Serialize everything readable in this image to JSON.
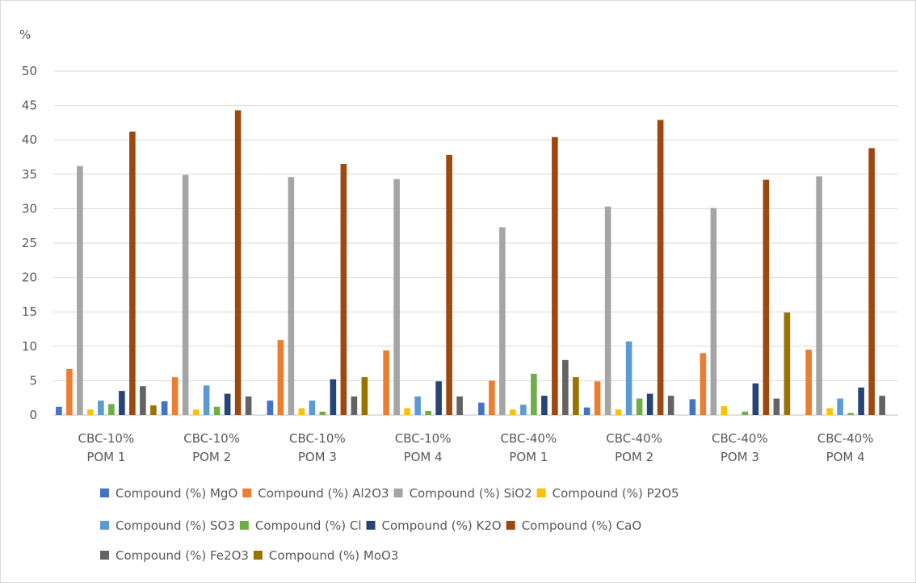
{
  "chart_data": {
    "type": "bar",
    "ylabel": "%",
    "ylim": [
      0,
      50
    ],
    "yticks": [
      0,
      5,
      10,
      15,
      20,
      25,
      30,
      35,
      40,
      45,
      50
    ],
    "grid": true,
    "legend_position": "bottom",
    "categories": [
      [
        "CBC-10%",
        "POM 1"
      ],
      [
        "CBC-10%",
        "POM 2"
      ],
      [
        "CBC-10%",
        "POM 3"
      ],
      [
        "CBC-10%",
        "POM 4"
      ],
      [
        "CBC-40%",
        "POM 1"
      ],
      [
        "CBC-40%",
        "POM 2"
      ],
      [
        "CBC-40%",
        "POM 3"
      ],
      [
        "CBC-40%",
        "POM 4"
      ]
    ],
    "series": [
      {
        "name": "Compound (%) MgO",
        "color": "#4472c4",
        "values": [
          1.2,
          2.0,
          2.1,
          0.0,
          1.8,
          1.1,
          2.3,
          0.0
        ]
      },
      {
        "name": "Compound (%) Al2O3",
        "color": "#ed7d31",
        "values": [
          6.7,
          5.5,
          10.9,
          9.4,
          5.0,
          4.9,
          9.0,
          9.5
        ]
      },
      {
        "name": "Compound (%) SiO2",
        "color": "#a5a5a5",
        "values": [
          36.2,
          34.9,
          34.6,
          34.3,
          27.3,
          30.3,
          30.1,
          34.7
        ]
      },
      {
        "name": "Compound (%) P2O5",
        "color": "#ffc000",
        "values": [
          0.8,
          0.8,
          1.0,
          1.0,
          0.8,
          0.8,
          1.3,
          1.0
        ]
      },
      {
        "name": "Compound (%) SO3",
        "color": "#5b9bd5",
        "values": [
          2.1,
          4.3,
          2.1,
          2.7,
          1.5,
          10.7,
          0.0,
          2.4
        ]
      },
      {
        "name": "Compound (%) Cl",
        "color": "#70ad47",
        "values": [
          1.6,
          1.2,
          0.5,
          0.6,
          6.0,
          2.4,
          0.5,
          0.3
        ]
      },
      {
        "name": "Compound (%) K2O",
        "color": "#264478",
        "values": [
          3.5,
          3.1,
          5.2,
          4.9,
          2.8,
          3.1,
          4.6,
          4.0
        ]
      },
      {
        "name": "Compound (%) CaO",
        "color": "#9e480e",
        "values": [
          41.2,
          44.3,
          36.5,
          37.8,
          40.4,
          42.9,
          34.2,
          38.8
        ]
      },
      {
        "name": "Compound (%) Fe2O3",
        "color": "#636363",
        "values": [
          4.2,
          2.7,
          2.7,
          2.7,
          8.0,
          2.8,
          2.4,
          2.8
        ]
      },
      {
        "name": "Compound (%) MoO3",
        "color": "#997300",
        "values": [
          1.4,
          0.0,
          5.5,
          0.0,
          5.5,
          0.0,
          14.9,
          0.0
        ]
      }
    ]
  }
}
